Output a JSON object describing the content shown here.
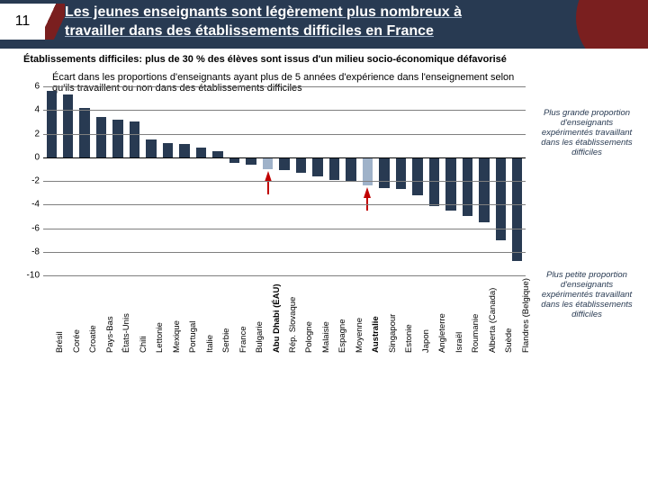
{
  "page_number": "11",
  "title_parts": {
    "p1": "Les jeunes enseignants sont légèrement plus nombreux  à ",
    "p2": "travailler dans des établissements difficiles en France"
  },
  "definition": {
    "bold": "Établissements difficiles: plus de 30 % des élèves sont issus d'un milieu socio-économique défavorisé",
    "sub": "Écart dans les proportions d'enseignants ayant plus de 5 années d'expérience dans l'enseignement selon qu'ils travaillent ou non dans des établissements difficiles"
  },
  "note_top": "Plus grande proportion d'enseignants expérimentés travaillant dans les établissements difficiles",
  "note_bot": "Plus petite proportion d'enseignants expérimentés travaillant dans les établissements difficiles",
  "chart": {
    "type": "bar",
    "ylim": [
      -10,
      6
    ],
    "ytick_step": 2,
    "yticks": [
      6,
      4,
      2,
      0,
      -2,
      -4,
      -6,
      -8,
      -10
    ],
    "bar_color": "#283a52",
    "bar_color_highlight": "#9fb2c9",
    "grid_color": "#7f7f7f",
    "zero_color": "#000000",
    "highlight_indices": [
      13,
      19
    ],
    "arrow_indices": [
      13,
      19
    ],
    "bold_label_indices": [
      13,
      19
    ],
    "categories": [
      "Brésil",
      "Corée",
      "Croatie",
      "Pays-Bas",
      "États-Unis",
      "Chili",
      "Lettonie",
      "Mexique",
      "Portugal",
      "Italie",
      "Serbie",
      "France",
      "Bulgarie",
      "Abu Dhabi (ÉAU)",
      "Rép. Slovaque",
      "Pologne",
      "Malaisie",
      "Espagne",
      "Moyenne",
      "Australie",
      "Singapour",
      "Estonie",
      "Japon",
      "Angleterre",
      "Israël",
      "Roumanie",
      "Alberta (Canada)",
      "Suède",
      "Flandres (Belgique)"
    ],
    "values": [
      5.6,
      5.3,
      4.2,
      3.4,
      3.2,
      3.0,
      1.5,
      1.2,
      1.1,
      0.8,
      0.5,
      -0.5,
      -0.6,
      -1.0,
      -1.1,
      -1.3,
      -1.6,
      -1.9,
      -2.1,
      -2.4,
      -2.6,
      -2.7,
      -3.2,
      -4.1,
      -4.5,
      -5.0,
      -5.5,
      -7.0,
      -8.8
    ]
  }
}
